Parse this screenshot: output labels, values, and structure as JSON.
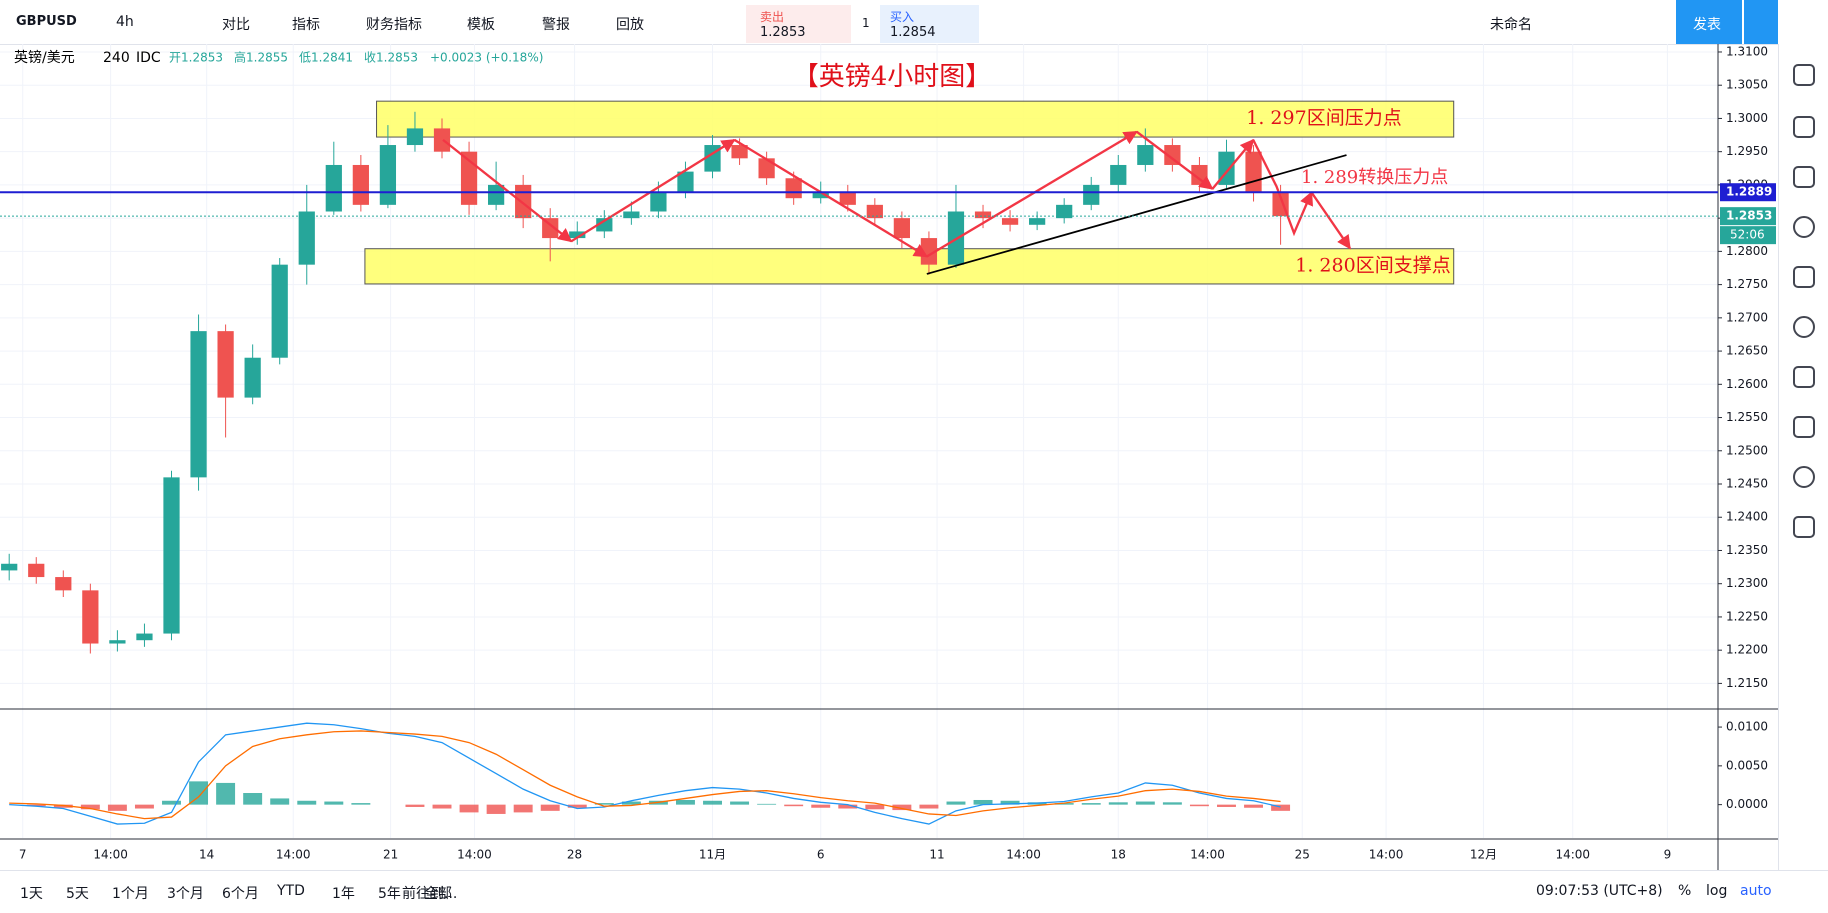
{
  "toolbar": {
    "symbol": "GBPUSD",
    "interval": "4h",
    "items": [
      "对比",
      "指标",
      "财务指标",
      "模板",
      "警报",
      "回放"
    ],
    "sell": {
      "label": "卖出",
      "price": "1.2853"
    },
    "quantity": "1",
    "buy": {
      "label": "买入",
      "price": "1.2854"
    },
    "layout_name": "未命名",
    "publish": "发表"
  },
  "legend": {
    "symbol": "英镑/美元",
    "interval": "240",
    "source": "IDC",
    "stats": [
      "开1.2853",
      "高1.2855",
      "低1.2841",
      "收1.2853",
      "+0.0023 (+0.18%)"
    ]
  },
  "bottom_bar": {
    "ranges": [
      "1天",
      "5天",
      "1个月",
      "3个月",
      "6个月",
      "YTD",
      "1年",
      "5年",
      "全部"
    ],
    "goto": "前往到...",
    "clock": "09:07:53 (UTC+8)",
    "options": [
      "%",
      "log",
      "auto"
    ]
  },
  "chart_data": [
    {
      "type": "candlestick",
      "title": "【英镑4小时图】",
      "up_color": "#26a69a",
      "down_color": "#ef5350",
      "xlim": [
        -0.34,
        63.17
      ],
      "ylim": [
        1.2113,
        1.3112
      ],
      "xticks": [
        {
          "value": 0.5,
          "label": "7"
        },
        {
          "value": 3.75,
          "label": "14:00"
        },
        {
          "value": 7.3,
          "label": "14"
        },
        {
          "value": 10.5,
          "label": "14:00"
        },
        {
          "value": 14.1,
          "label": "21"
        },
        {
          "value": 17.2,
          "label": "14:00"
        },
        {
          "value": 20.9,
          "label": "28"
        },
        {
          "value": 26,
          "label": "11月"
        },
        {
          "value": 30,
          "label": "6"
        },
        {
          "value": 34.3,
          "label": "11"
        },
        {
          "value": 37.5,
          "label": "14:00"
        },
        {
          "value": 41,
          "label": "18"
        },
        {
          "value": 44.3,
          "label": "14:00"
        },
        {
          "value": 47.8,
          "label": "25"
        },
        {
          "value": 50.9,
          "label": "14:00"
        },
        {
          "value": 54.5,
          "label": "12月"
        },
        {
          "value": 57.8,
          "label": "14:00"
        },
        {
          "value": 61.3,
          "label": "9"
        }
      ],
      "yticks": [
        {
          "value": 1.31,
          "label": "1.3100"
        },
        {
          "value": 1.305,
          "label": "1.3050"
        },
        {
          "value": 1.3,
          "label": "1.3000"
        },
        {
          "value": 1.295,
          "label": "1.2950"
        },
        {
          "value": 1.29,
          "label": "1.2900"
        },
        {
          "value": 1.285,
          "label": "1.2850"
        },
        {
          "value": 1.28,
          "label": "1.2800"
        },
        {
          "value": 1.275,
          "label": "1.2750"
        },
        {
          "value": 1.27,
          "label": "1.2700"
        },
        {
          "value": 1.265,
          "label": "1.2650"
        },
        {
          "value": 1.26,
          "label": "1.2600"
        },
        {
          "value": 1.255,
          "label": "1.2550"
        },
        {
          "value": 1.25,
          "label": "1.2500"
        },
        {
          "value": 1.245,
          "label": "1.2450"
        },
        {
          "value": 1.24,
          "label": "1.2400"
        },
        {
          "value": 1.235,
          "label": "1.2350"
        },
        {
          "value": 1.23,
          "label": "1.2300"
        },
        {
          "value": 1.225,
          "label": "1.2250"
        },
        {
          "value": 1.22,
          "label": "1.2200"
        },
        {
          "value": 1.215,
          "label": "1.2150"
        }
      ],
      "grid": true,
      "open": [
        1.232,
        1.233,
        1.231,
        1.229,
        1.221,
        1.2215,
        1.2225,
        1.246,
        1.268,
        1.258,
        1.264,
        1.278,
        1.286,
        1.293,
        1.287,
        1.296,
        1.2985,
        1.295,
        1.287,
        1.29,
        1.285,
        1.282,
        1.283,
        1.285,
        1.286,
        1.289,
        1.292,
        1.296,
        1.294,
        1.291,
        1.288,
        1.289,
        1.287,
        1.285,
        1.282,
        1.278,
        1.286,
        1.285,
        1.284,
        1.285,
        1.287,
        1.29,
        1.293,
        1.296,
        1.293,
        1.29,
        1.295,
        1.289
      ],
      "high": [
        1.2345,
        1.234,
        1.232,
        1.23,
        1.223,
        1.224,
        1.247,
        1.2705,
        1.269,
        1.266,
        1.279,
        1.29,
        1.2965,
        1.2945,
        1.299,
        1.301,
        1.3,
        1.2965,
        1.2935,
        1.2915,
        1.2865,
        1.2845,
        1.2862,
        1.2875,
        1.2905,
        1.2935,
        1.2975,
        1.297,
        1.295,
        1.292,
        1.2905,
        1.29,
        1.288,
        1.286,
        1.283,
        1.29,
        1.287,
        1.2862,
        1.286,
        1.288,
        1.2912,
        1.2945,
        1.2985,
        1.297,
        1.2942,
        1.2968,
        1.296,
        1.29
      ],
      "low": [
        1.2305,
        1.23,
        1.228,
        1.2195,
        1.2198,
        1.2205,
        1.2215,
        1.244,
        1.252,
        1.257,
        1.263,
        1.275,
        1.2855,
        1.286,
        1.2865,
        1.295,
        1.294,
        1.2855,
        1.2862,
        1.2835,
        1.2785,
        1.281,
        1.282,
        1.284,
        1.285,
        1.288,
        1.291,
        1.293,
        1.29,
        1.287,
        1.2872,
        1.286,
        1.284,
        1.2805,
        1.2765,
        1.2775,
        1.2835,
        1.283,
        1.2832,
        1.2842,
        1.2862,
        1.289,
        1.292,
        1.292,
        1.289,
        1.2895,
        1.2875,
        1.281
      ],
      "close": [
        1.233,
        1.231,
        1.229,
        1.221,
        1.2215,
        1.2225,
        1.246,
        1.268,
        1.258,
        1.264,
        1.278,
        1.286,
        1.293,
        1.287,
        1.296,
        1.2985,
        1.295,
        1.287,
        1.29,
        1.285,
        1.282,
        1.283,
        1.285,
        1.286,
        1.289,
        1.292,
        1.296,
        1.294,
        1.291,
        1.288,
        1.289,
        1.287,
        1.285,
        1.282,
        1.278,
        1.286,
        1.285,
        1.284,
        1.285,
        1.287,
        1.29,
        1.293,
        1.296,
        1.293,
        1.29,
        1.295,
        1.289,
        1.2853
      ],
      "zones": [
        {
          "label": "1. 297区间压力点",
          "top": 1.3026,
          "bottom": 1.2972,
          "from": 13.58,
          "to": 53.4
        },
        {
          "label": "1. 280区间支撑点",
          "top": 1.2804,
          "bottom": 1.2751,
          "from": 13.15,
          "to": 53.4
        }
      ],
      "price_lines": [
        {
          "value": 1.2889,
          "color": "#1e1ed2",
          "note": "1. 289转换压力点"
        },
        {
          "value": 1.2853,
          "color": "#26a69a",
          "timer": "52:06"
        }
      ]
    },
    {
      "type": "macd",
      "ylim": [
        -0.0043,
        0.0122
      ],
      "yticks": [
        {
          "value": 0.01,
          "label": "0.0100"
        },
        {
          "value": 0.005,
          "label": "0.0050"
        },
        {
          "value": 0,
          "label": "0.0000"
        }
      ],
      "histogram": {
        "up_color": "#26a69a",
        "down_color": "#ef5350",
        "values": [
          0,
          -0.0002,
          -0.0004,
          -0.0006,
          -0.0008,
          -0.0005,
          0.0005,
          0.003,
          0.0028,
          0.0015,
          0.0008,
          0.0005,
          0.0004,
          0.0002,
          0,
          -0.0003,
          -0.0005,
          -0.001,
          -0.0012,
          -0.001,
          -0.0008,
          -0.0004,
          0.0002,
          0.0004,
          0.0005,
          0.0006,
          0.0005,
          0.0004,
          0.0001,
          -0.0002,
          -0.0004,
          -0.0005,
          -0.0006,
          -0.0007,
          -0.0005,
          0.0004,
          0.0006,
          0.0005,
          0.0003,
          0.0002,
          0.0002,
          0.0003,
          0.0004,
          0.0003,
          -0.0002,
          -0.0003,
          -0.0004,
          -0.0008
        ]
      },
      "series": [
        {
          "color": "#2196f3",
          "values": [
            0,
            -0.0002,
            -0.0005,
            -0.0015,
            -0.0025,
            -0.0024,
            -0.001,
            0.0055,
            0.009,
            0.0095,
            0.01,
            0.0105,
            0.0103,
            0.0098,
            0.0092,
            0.0088,
            0.008,
            0.006,
            0.004,
            0.002,
            0.0005,
            -0.0005,
            -0.0003,
            0.0005,
            0.0012,
            0.0018,
            0.0022,
            0.002,
            0.0015,
            0.0008,
            0.0003,
            0,
            -0.001,
            -0.0018,
            -0.0025,
            -0.0008,
            0,
            0.0001,
            0.0002,
            0.0004,
            0.001,
            0.0015,
            0.0028,
            0.0025,
            0.0015,
            0.0008,
            0.0005,
            -0.0003
          ]
        },
        {
          "color": "#ff6d00",
          "values": [
            0.0002,
            0.0001,
            -0.0001,
            -0.0005,
            -0.0012,
            -0.0018,
            -0.0016,
            0.001,
            0.005,
            0.0075,
            0.0085,
            0.009,
            0.0094,
            0.0095,
            0.0093,
            0.0091,
            0.0088,
            0.008,
            0.0065,
            0.0045,
            0.0025,
            0.001,
            -0.0002,
            -0.0001,
            0.0003,
            0.0008,
            0.0013,
            0.0017,
            0.0018,
            0.0014,
            0.0009,
            0.0005,
            0.0002,
            -0.0005,
            -0.0012,
            -0.0014,
            -0.0008,
            -0.0004,
            -0.0001,
            0.0002,
            0.0007,
            0.0011,
            0.0018,
            0.002,
            0.0017,
            0.0011,
            0.0008,
            0.0004
          ]
        }
      ]
    }
  ]
}
